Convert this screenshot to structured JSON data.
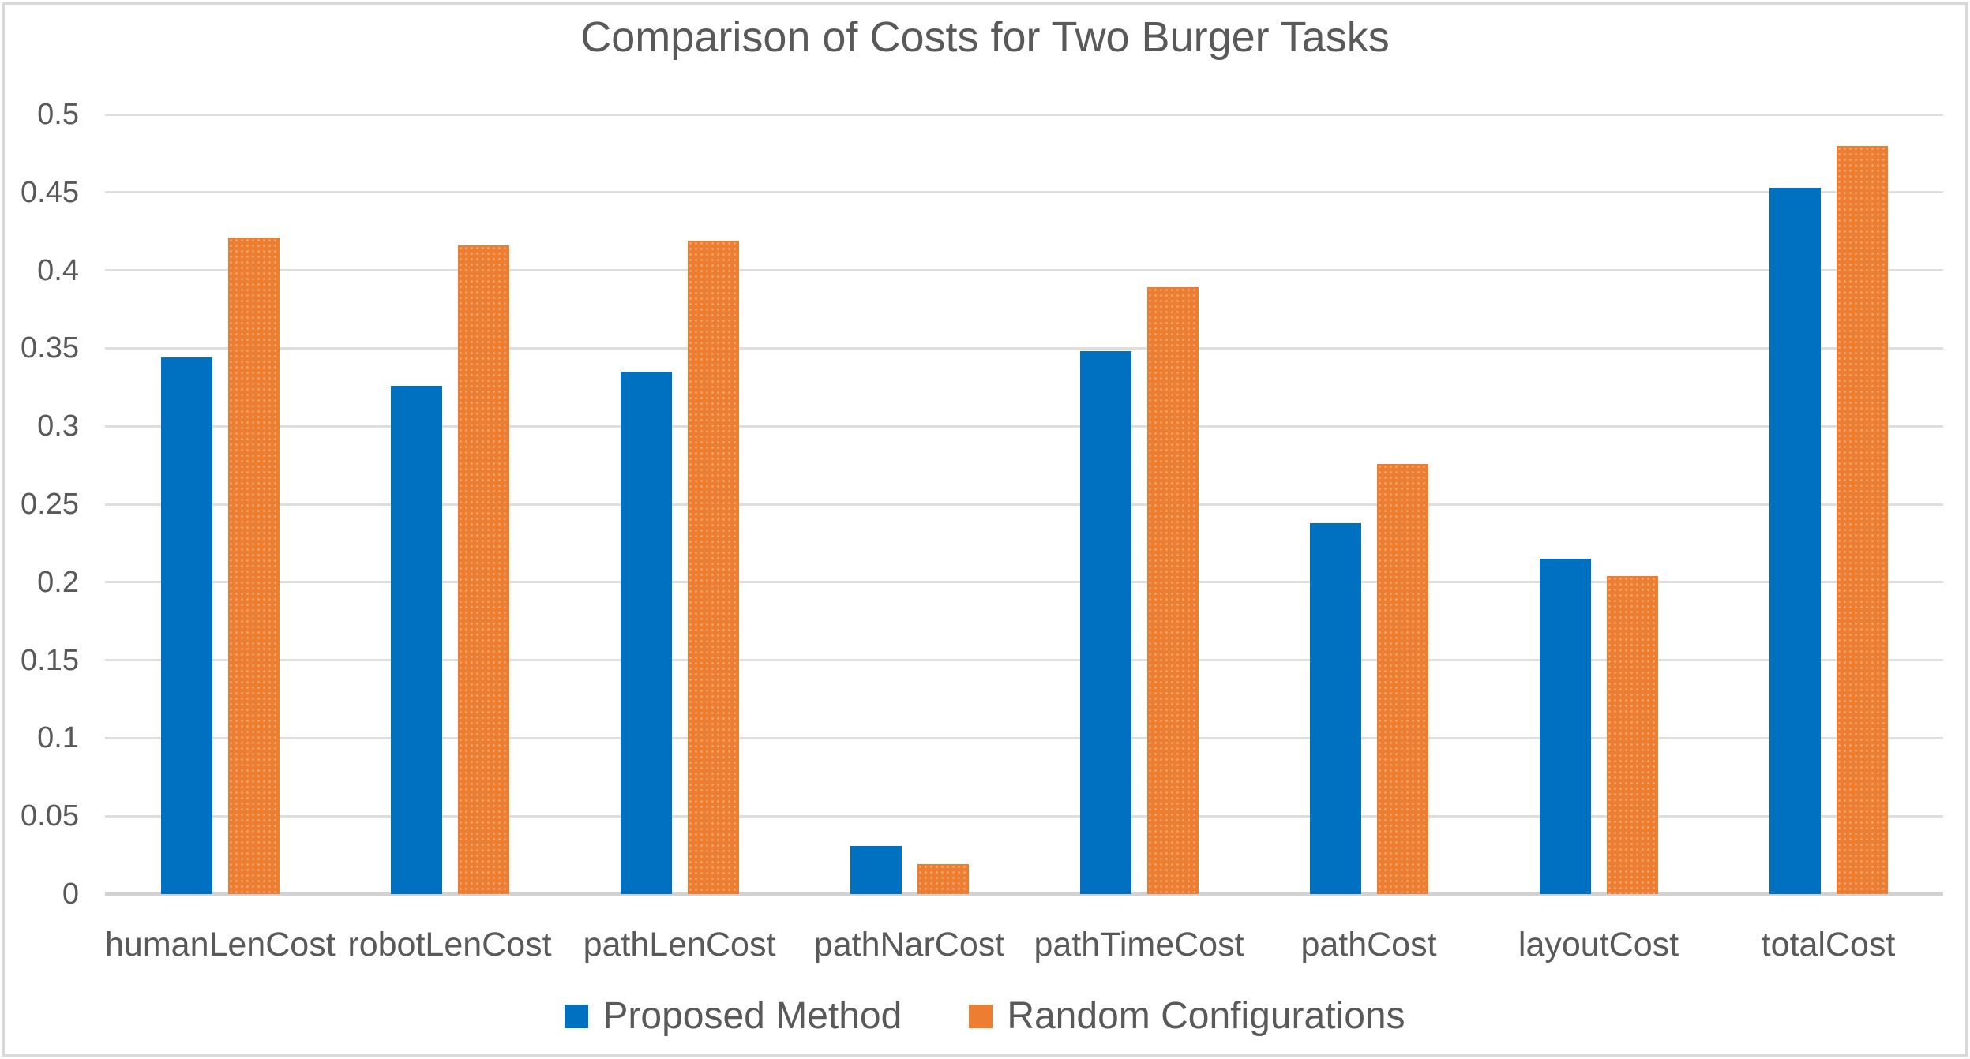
{
  "chart_data": {
    "type": "bar",
    "title": "Comparison of Costs for Two Burger Tasks",
    "categories": [
      "humanLenCost",
      "robotLenCost",
      "pathLenCost",
      "pathNarCost",
      "pathTimeCost",
      "pathCost",
      "layoutCost",
      "totalCost"
    ],
    "series": [
      {
        "name": "Proposed Method",
        "color": "#0070C0",
        "values": [
          0.344,
          0.326,
          0.335,
          0.031,
          0.348,
          0.238,
          0.215,
          0.453
        ]
      },
      {
        "name": "Random Configurations",
        "color": "#ED7D31",
        "values": [
          0.421,
          0.416,
          0.419,
          0.019,
          0.389,
          0.276,
          0.204,
          0.48
        ]
      }
    ],
    "xlabel": "",
    "ylabel": "",
    "ylim": [
      0,
      0.5
    ],
    "ytick_step": 0.05,
    "yticks": [
      "0",
      "0.05",
      "0.1",
      "0.15",
      "0.2",
      "0.25",
      "0.3",
      "0.35",
      "0.4",
      "0.45",
      "0.5"
    ],
    "grid": true,
    "legend_position": "bottom"
  },
  "colors": {
    "text": "#595959",
    "gridline": "#DEDEDE",
    "axisline": "#D2D2D2",
    "frame": "#D9D9D9",
    "background": "#FFFFFF"
  }
}
